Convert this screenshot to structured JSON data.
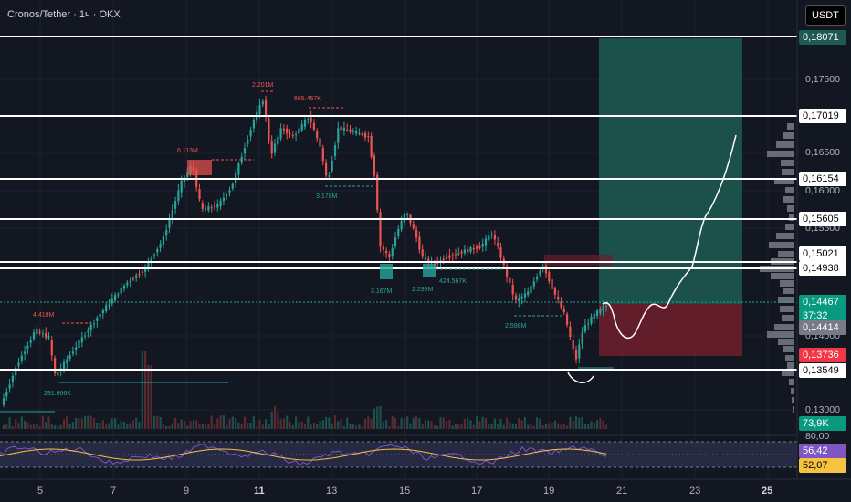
{
  "header": {
    "title": "Cronos/Tether · 1ч · OKX",
    "currency": "USDT"
  },
  "price_axis": {
    "ticks": [
      "0,17500",
      "0,16500",
      "0,16000",
      "0,15500",
      "0,14000",
      "0,13000",
      "80,00"
    ]
  },
  "tags": {
    "p18071": "0,18071",
    "p17019": "0,17019",
    "p16154": "0,16154",
    "p15605": "0,15605",
    "p15021": "0,15021",
    "p14938": "0,14938",
    "p14467": "0,14467",
    "countdown": "37:32",
    "p14414": "0,14414",
    "p13736": "0,13736",
    "p13549": "0,13549",
    "volume": "73,9K",
    "rsi1": "56,42",
    "rsi2": "52,07"
  },
  "time_axis": {
    "labels": [
      "5",
      "7",
      "9",
      "11",
      "13",
      "15",
      "17",
      "19",
      "21",
      "23",
      "25"
    ]
  },
  "annotations": {
    "a1": "2.201M",
    "a2": "665.457K",
    "a3": "6.113M",
    "a4": "3.178M",
    "a5": "4.418M",
    "a6": "291.666K",
    "a7": "3.167M",
    "a8": "2.299M",
    "a9": "424.567K",
    "a10": "2.598M"
  },
  "colors": {
    "bg": "#131722",
    "up": "#26a69a",
    "down": "#ef5350",
    "tp": "#1e5a52",
    "sl": "#6b1e2c"
  }
}
